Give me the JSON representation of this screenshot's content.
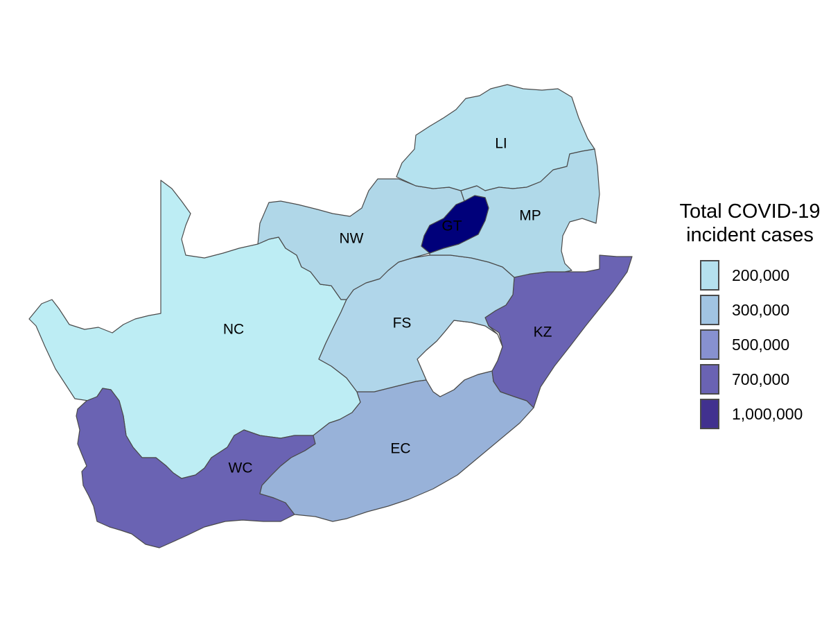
{
  "map": {
    "country": "South Africa",
    "provinces": [
      {
        "code": "LI",
        "color": "#b5e2ef"
      },
      {
        "code": "MP",
        "color": "#b0d9e9"
      },
      {
        "code": "GT",
        "color": "#00007a"
      },
      {
        "code": "NW",
        "color": "#b0d7e8"
      },
      {
        "code": "NC",
        "color": "#bdedf4"
      },
      {
        "code": "FS",
        "color": "#b0d6ea"
      },
      {
        "code": "KZ",
        "color": "#6a63b3"
      },
      {
        "code": "EC",
        "color": "#98b2d9"
      },
      {
        "code": "WC",
        "color": "#6a63b3"
      }
    ]
  },
  "legend": {
    "title_line1": "Total COVID-19",
    "title_line2": "incident cases",
    "items": [
      {
        "label": "200,000",
        "color": "#b5e1ee"
      },
      {
        "label": "300,000",
        "color": "#a1c4e2"
      },
      {
        "label": "500,000",
        "color": "#8791d0"
      },
      {
        "label": "700,000",
        "color": "#6a63b3"
      },
      {
        "label": "1,000,000",
        "color": "#41318f"
      }
    ]
  }
}
